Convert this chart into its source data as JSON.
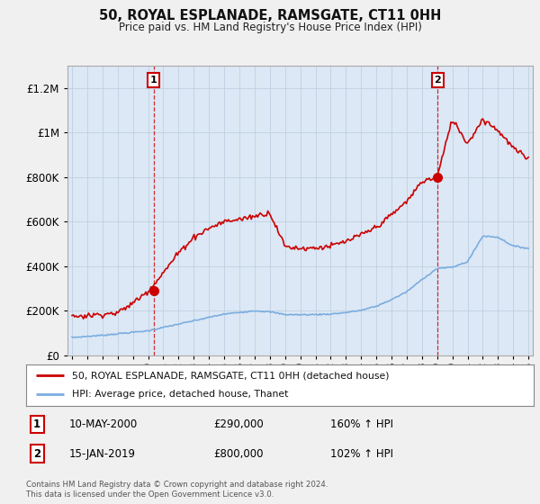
{
  "title": "50, ROYAL ESPLANADE, RAMSGATE, CT11 0HH",
  "subtitle": "Price paid vs. HM Land Registry's House Price Index (HPI)",
  "legend_line1": "50, ROYAL ESPLANADE, RAMSGATE, CT11 0HH (detached house)",
  "legend_line2": "HPI: Average price, detached house, Thanet",
  "annotation1_date": "10-MAY-2000",
  "annotation1_price": "£290,000",
  "annotation1_hpi": "160% ↑ HPI",
  "annotation2_date": "15-JAN-2019",
  "annotation2_price": "£800,000",
  "annotation2_hpi": "102% ↑ HPI",
  "footnote": "Contains HM Land Registry data © Crown copyright and database right 2024.\nThis data is licensed under the Open Government Licence v3.0.",
  "red_color": "#cc0000",
  "blue_color": "#7aade0",
  "marker1_year": 2000.36,
  "marker1_y": 290000,
  "marker2_year": 2019.04,
  "marker2_y": 800000,
  "ylim": [
    0,
    1300000
  ],
  "xlim": [
    1994.7,
    2025.3
  ],
  "background_color": "#f0f0f0",
  "plot_bg_color": "#dce8f5"
}
